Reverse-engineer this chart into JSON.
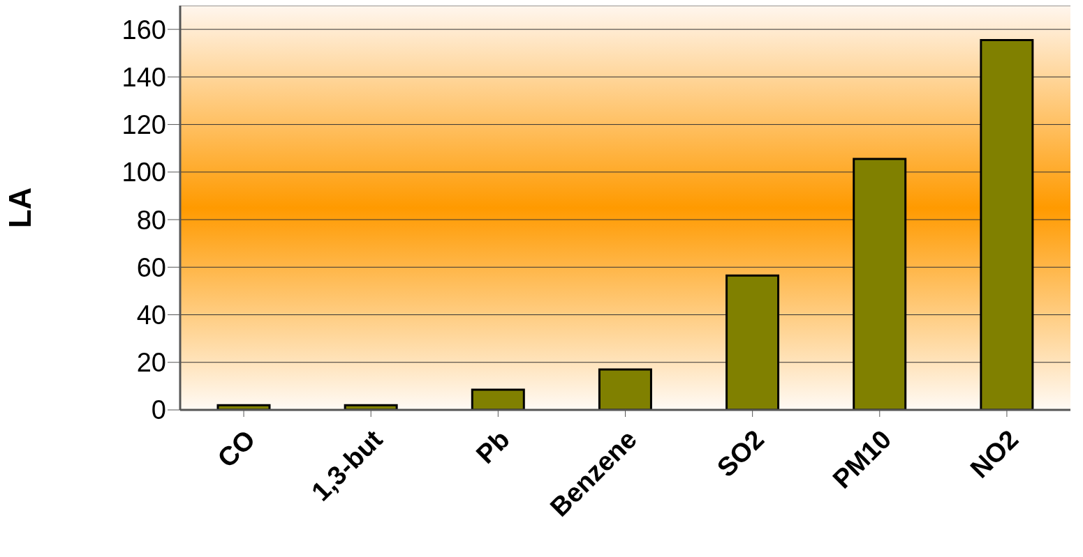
{
  "chart_data": {
    "type": "bar",
    "ylabel": "LA",
    "categories": [
      "CO",
      "1,3-but",
      "Pb",
      "Benzene",
      "SO2",
      "PM10",
      "NO2"
    ],
    "values": [
      2,
      2,
      8.5,
      17,
      56.5,
      105.5,
      155.5
    ],
    "color": "#808000",
    "ylim": [
      0,
      170
    ],
    "yticks": [
      0,
      20,
      40,
      60,
      80,
      100,
      120,
      140,
      160
    ],
    "grid": "y"
  }
}
